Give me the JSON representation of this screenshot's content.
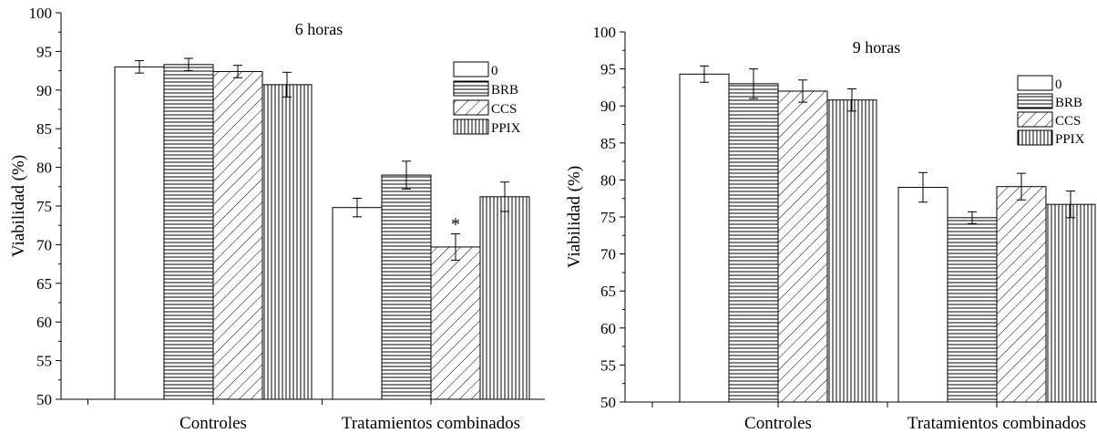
{
  "chart_data": [
    {
      "type": "bar",
      "title": "6 horas",
      "xlabel": "",
      "ylabel": "Viabilidad (%)",
      "ylim": [
        50,
        100
      ],
      "yticks": [
        50,
        55,
        60,
        65,
        70,
        75,
        80,
        85,
        90,
        95,
        100
      ],
      "categories": [
        "Controles",
        "Tratamientos combinados"
      ],
      "legend_position": "top-right",
      "series": [
        {
          "name": "0",
          "pattern": "none",
          "values": [
            93.0,
            74.8
          ],
          "errors": [
            0.8,
            1.2
          ]
        },
        {
          "name": "BRB",
          "pattern": "horizontal",
          "values": [
            93.3,
            79.0
          ],
          "errors": [
            0.8,
            1.8
          ]
        },
        {
          "name": "CCS",
          "pattern": "diagonal",
          "values": [
            92.4,
            69.7
          ],
          "errors": [
            0.8,
            1.7
          ]
        },
        {
          "name": "PPIX",
          "pattern": "vertical",
          "values": [
            90.7,
            76.2
          ],
          "errors": [
            1.6,
            1.9
          ]
        }
      ],
      "annotations": [
        {
          "text": "*",
          "series": "CCS",
          "category": "Tratamientos combinados"
        }
      ]
    },
    {
      "type": "bar",
      "title": "9 horas",
      "xlabel": "",
      "ylabel": "Viabilidad (%)",
      "ylim": [
        50,
        100
      ],
      "yticks": [
        50,
        55,
        60,
        65,
        70,
        75,
        80,
        85,
        90,
        95,
        100
      ],
      "categories": [
        "Controles",
        "Tratamientos combinados"
      ],
      "legend_position": "top-right",
      "series": [
        {
          "name": "0",
          "pattern": "none",
          "values": [
            94.3,
            79.0
          ],
          "errors": [
            1.1,
            2.0
          ]
        },
        {
          "name": "BRB",
          "pattern": "horizontal",
          "values": [
            93.0,
            74.9
          ],
          "errors": [
            2.0,
            0.8
          ]
        },
        {
          "name": "CCS",
          "pattern": "diagonal",
          "values": [
            92.0,
            79.1
          ],
          "errors": [
            1.5,
            1.8
          ]
        },
        {
          "name": "PPIX",
          "pattern": "vertical",
          "values": [
            90.8,
            76.7
          ],
          "errors": [
            1.5,
            1.8
          ]
        }
      ],
      "annotations": []
    }
  ]
}
